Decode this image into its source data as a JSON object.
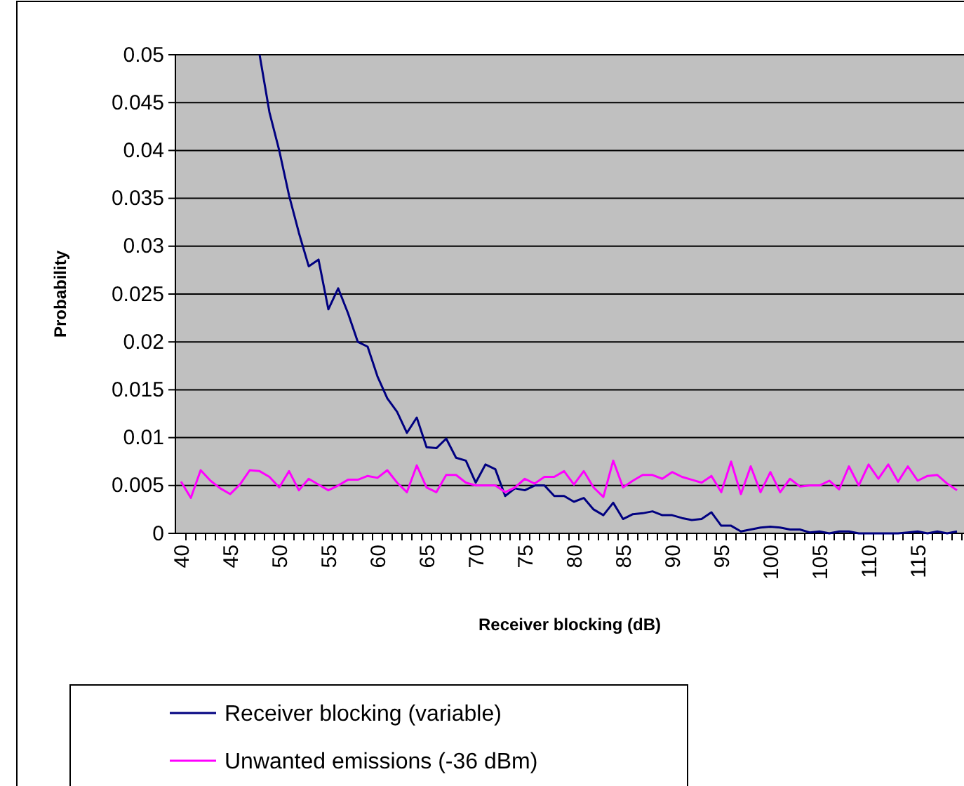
{
  "chart_data": {
    "type": "line",
    "xlabel": "Receiver blocking (dB)",
    "ylabel": "Probability",
    "categories": [
      "40",
      null,
      null,
      null,
      null,
      "45",
      null,
      null,
      null,
      null,
      "50",
      null,
      null,
      null,
      null,
      "55",
      null,
      null,
      null,
      null,
      "60",
      null,
      null,
      null,
      null,
      "65",
      null,
      null,
      null,
      null,
      "70",
      null,
      null,
      null,
      null,
      "75",
      null,
      null,
      null,
      null,
      "80",
      null,
      null,
      null,
      null,
      "85",
      null,
      null,
      null,
      null,
      "90",
      null,
      null,
      null,
      null,
      "95",
      null,
      null,
      null,
      null,
      "100",
      null,
      null,
      null,
      null,
      "105",
      null,
      null,
      null,
      null,
      "110",
      null,
      null,
      null,
      null,
      "115",
      null,
      null,
      null,
      null
    ],
    "series": [
      {
        "name": "Receiver blocking (variable)",
        "color": "#000080",
        "values": [
          null,
          null,
          null,
          null,
          null,
          null,
          null,
          null,
          0.05,
          0.044,
          0.04,
          0.0353,
          0.0314,
          0.0279,
          0.0286,
          0.0234,
          0.0256,
          0.023,
          0.02,
          0.0195,
          0.0164,
          0.0141,
          0.0127,
          0.0105,
          0.0121,
          0.009,
          0.0089,
          0.0099,
          0.0079,
          0.0076,
          0.0053,
          0.0072,
          0.0067,
          0.0039,
          0.0047,
          0.0045,
          0.005,
          0.005,
          0.0039,
          0.0039,
          0.0033,
          0.0037,
          0.0025,
          0.0019,
          0.0032,
          0.0015,
          0.002,
          0.0021,
          0.0023,
          0.0019,
          0.0019,
          0.0016,
          0.0014,
          0.0015,
          0.0022,
          0.0008,
          0.0008,
          0.0002,
          0.0004,
          0.0006,
          0.0007,
          0.0006,
          0.0004,
          0.0004,
          0.0001,
          0.0002,
          0,
          0.0002,
          0.0002,
          0,
          0,
          0,
          0,
          0,
          0.0001,
          0.0002,
          0,
          0.0002,
          0,
          0.0002
        ]
      },
      {
        "name": "Unwanted emissions (-36 dBm)",
        "color": "#ff00ff",
        "values": [
          0.0054,
          0.0037,
          0.0066,
          0.0055,
          0.0047,
          0.0041,
          0.0051,
          0.0066,
          0.0065,
          0.0059,
          0.0048,
          0.0065,
          0.0045,
          0.0057,
          0.0051,
          0.0045,
          0.005,
          0.0056,
          0.0056,
          0.006,
          0.0058,
          0.0066,
          0.0053,
          0.0043,
          0.0071,
          0.0048,
          0.0043,
          0.0061,
          0.0061,
          0.0053,
          0.005,
          0.005,
          0.005,
          0.0043,
          0.0048,
          0.0057,
          0.0052,
          0.0059,
          0.0059,
          0.0065,
          0.0051,
          0.0065,
          0.0048,
          0.0038,
          0.0076,
          0.0048,
          0.0055,
          0.0061,
          0.0061,
          0.0057,
          0.0064,
          0.0059,
          0.0056,
          0.0053,
          0.006,
          0.0043,
          0.0075,
          0.0041,
          0.007,
          0.0043,
          0.0064,
          0.0043,
          0.0057,
          0.0049,
          0.005,
          0.005,
          0.0055,
          0.0046,
          0.007,
          0.005,
          0.0072,
          0.0057,
          0.0072,
          0.0054,
          0.007,
          0.0055,
          0.006,
          0.0061,
          0.0052,
          0.0045
        ]
      }
    ],
    "ylim": [
      0,
      0.05
    ],
    "yticks": [
      0,
      0.005,
      0.01,
      0.015,
      0.02,
      0.025,
      0.03,
      0.035,
      0.04,
      0.045,
      0.05
    ],
    "grid": "y",
    "legend": "bottom",
    "marker": "none",
    "line_style": "solid"
  }
}
